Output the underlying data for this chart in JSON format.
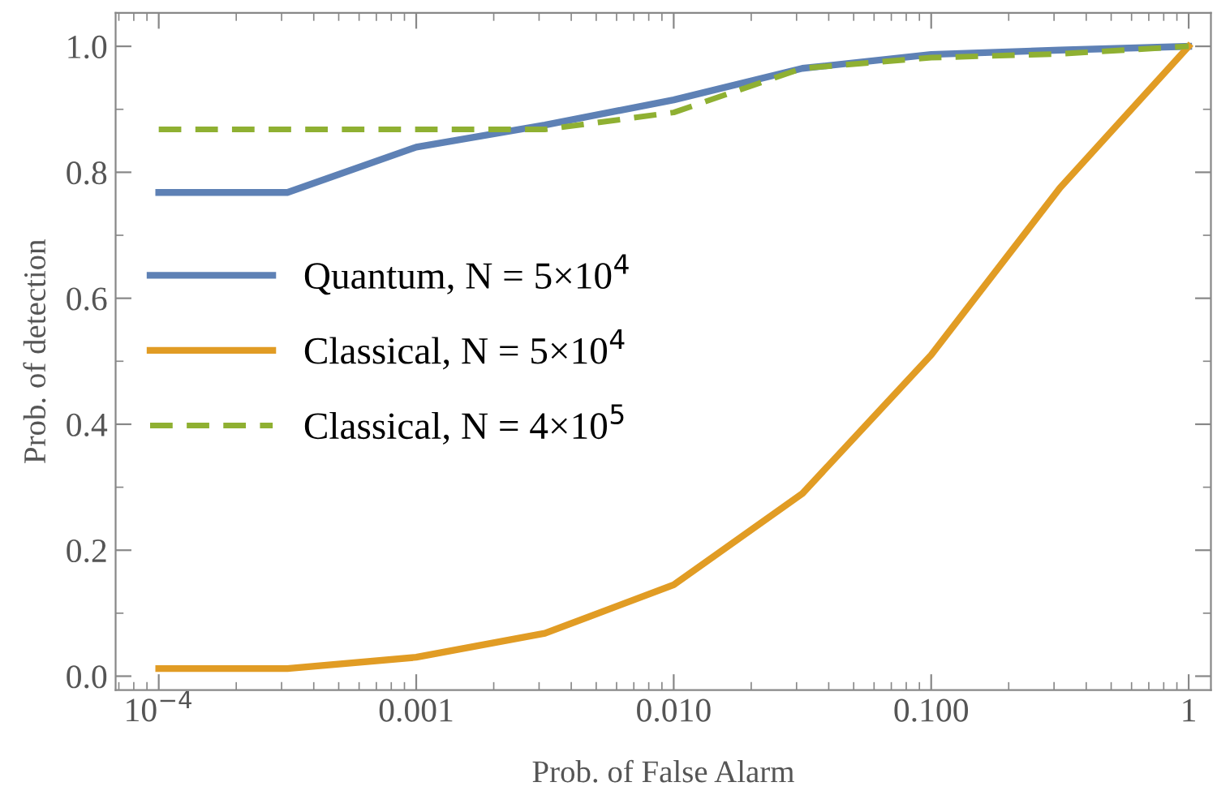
{
  "chart_data": {
    "type": "line",
    "xlabel": "Prob. of False Alarm",
    "ylabel": "Prob. of detection",
    "log": "x",
    "x": [
      0.0001,
      0.000316,
      0.001,
      0.00316,
      0.01,
      0.0316,
      0.1,
      0.316,
      1
    ],
    "series": [
      {
        "name": "Quantum, N = 5×10$^{4}$",
        "color": "#5e81b5",
        "line_style": "solid",
        "values": [
          0.768,
          0.768,
          0.84,
          0.875,
          0.915,
          0.965,
          0.987,
          0.994,
          1.0
        ]
      },
      {
        "name": "Classical, N = 5×10$^{4}$",
        "color": "#e19c24",
        "line_style": "solid",
        "values": [
          0.012,
          0.012,
          0.03,
          0.068,
          0.145,
          0.29,
          0.51,
          0.775,
          1.0
        ]
      },
      {
        "name": "Classical, N = 4×10$^{5}$",
        "color": "#8fb032",
        "line_style": "dashed",
        "values": [
          0.868,
          0.868,
          0.868,
          0.868,
          0.895,
          0.965,
          0.982,
          0.988,
          1.0
        ]
      }
    ],
    "xlim": [
      6.8e-05,
      1.22
    ],
    "ylim": [
      -0.022,
      1.053
    ],
    "xticks": [
      {
        "value": 0.0001,
        "label": "10$^{−4}$"
      },
      {
        "value": 0.001,
        "label": "0.001"
      },
      {
        "value": 0.01,
        "label": "0.010"
      },
      {
        "value": 0.1,
        "label": "0.100"
      },
      {
        "value": 1,
        "label": "1"
      }
    ],
    "yticks": [
      {
        "value": 0,
        "label": "0.0"
      },
      {
        "value": 0.2,
        "label": "0.2"
      },
      {
        "value": 0.4,
        "label": "0.4"
      },
      {
        "value": 0.6,
        "label": "0.6"
      },
      {
        "value": 0.8,
        "label": "0.8"
      },
      {
        "value": 1.0,
        "label": "1.0"
      }
    ],
    "grid": false,
    "legend": "center left",
    "marker": "none"
  }
}
